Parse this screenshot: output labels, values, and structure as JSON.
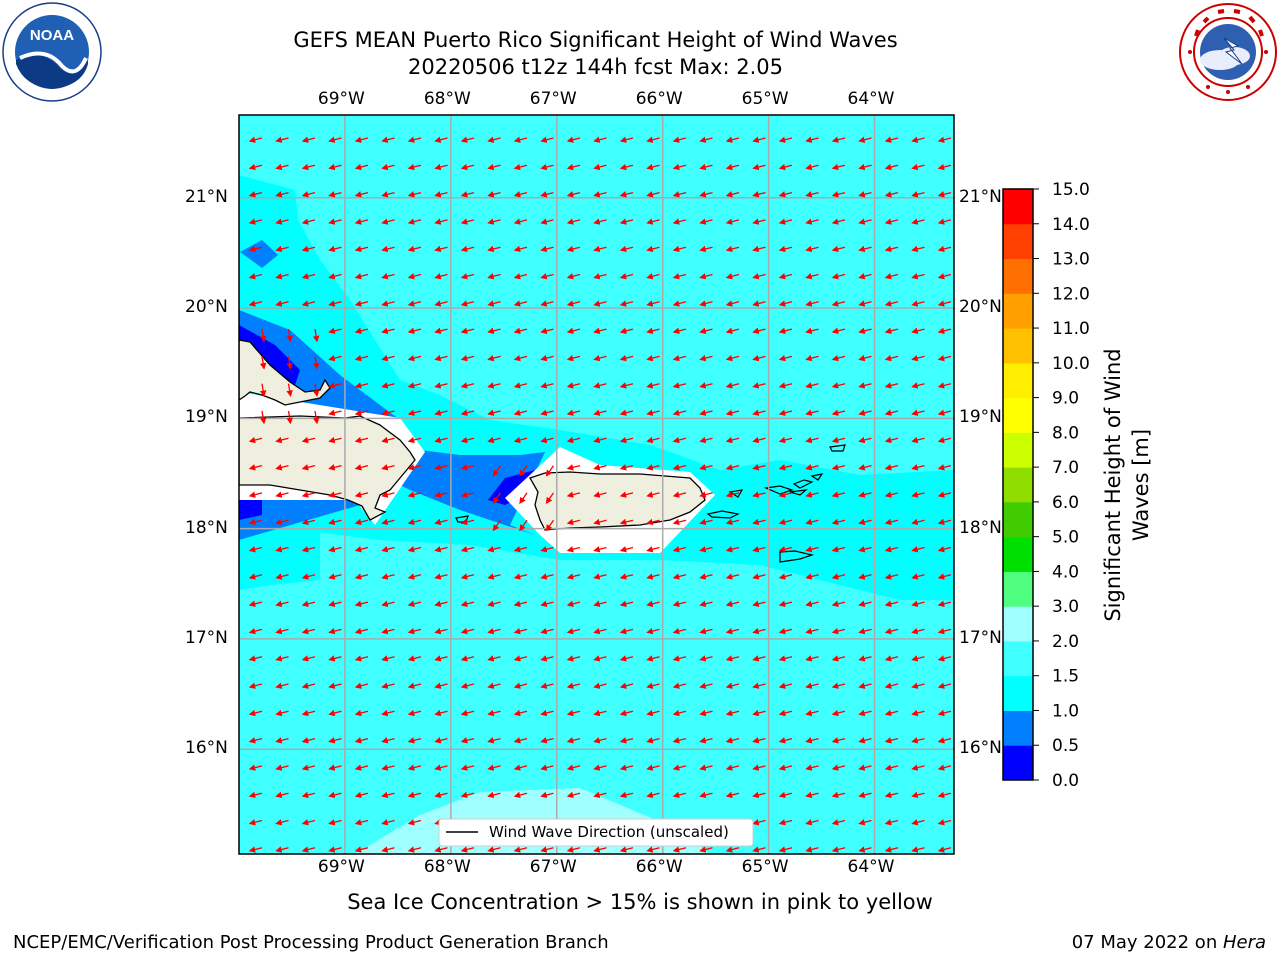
{
  "header": {
    "title_line1": "GEFS MEAN Puerto Rico Significant Height of Wind Waves",
    "title_line2": "20220506 t12z 144h fcst   Max: 2.05"
  },
  "logos": {
    "left": {
      "icon": "noaa-logo-icon",
      "text": "NOAA"
    },
    "right": {
      "icon": "nws-logo-icon"
    }
  },
  "map": {
    "lon_labels": [
      "69°W",
      "68°W",
      "67°W",
      "66°W",
      "65°W",
      "64°W"
    ],
    "lat_labels": [
      "21°N",
      "20°N",
      "19°N",
      "18°N",
      "17°N",
      "16°N"
    ],
    "lon_range": [
      -70.0,
      -63.25
    ],
    "lat_range": [
      15.05,
      21.75
    ],
    "ocean_color": "#00ffff",
    "land_color": "#efefdf",
    "arrow_color": "#ff0000",
    "legend_label": "Wind Wave Direction (unscaled)"
  },
  "colorbar": {
    "title": "Significant Height of Wind Waves [m]",
    "ticks": [
      "0.0",
      "0.5",
      "1.0",
      "1.5",
      "2.0",
      "3.0",
      "4.0",
      "5.0",
      "6.0",
      "7.0",
      "8.0",
      "9.0",
      "10.0",
      "11.0",
      "12.0",
      "13.0",
      "14.0",
      "15.0"
    ],
    "colors": [
      "#0000ff",
      "#0080ff",
      "#00ffff",
      "#40ffff",
      "#a0ffff",
      "#50ff80",
      "#00e000",
      "#40cc00",
      "#90dd00",
      "#ccff00",
      "#ffff00",
      "#ffee00",
      "#ffc000",
      "#ffa000",
      "#ff7000",
      "#ff4000",
      "#ff0000"
    ]
  },
  "subtitle": "Sea Ice Concentration > 15% is shown in pink to yellow",
  "footer": {
    "left": "NCEP/EMC/Verification Post Processing Product Generation Branch",
    "right_prefix": "07 May 2022 on ",
    "right_host": "Hera"
  }
}
